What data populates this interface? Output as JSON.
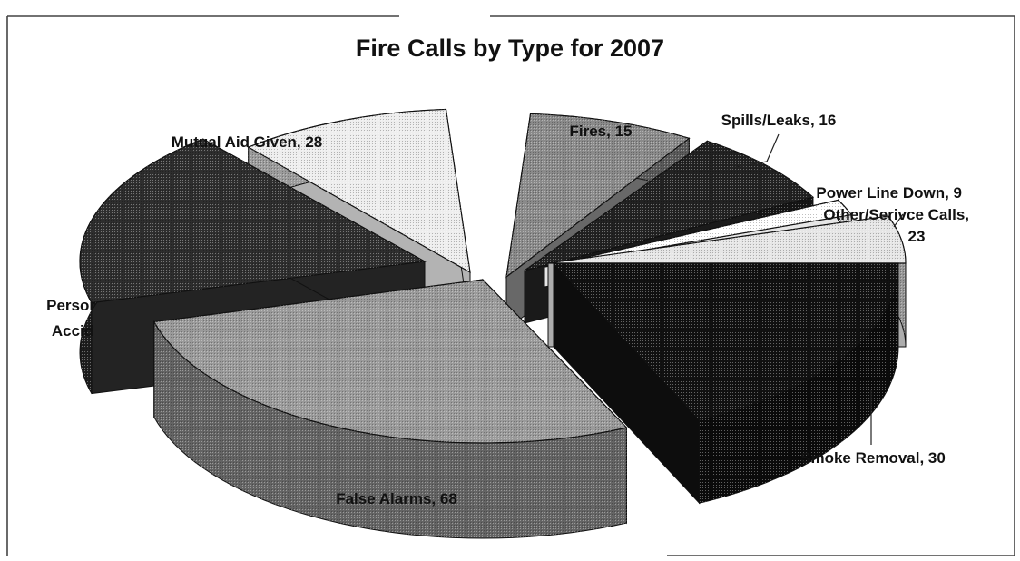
{
  "chart_data": {
    "type": "pie",
    "title": "Fire Calls by Type for 2007",
    "style": "3d-exploded",
    "slices": [
      {
        "label": "Fires",
        "value": 15,
        "display": "Fires, 15",
        "color": "#8a8a8a"
      },
      {
        "label": "Spills/Leaks",
        "value": 16,
        "display": "Spills/Leaks, 16",
        "color": "#222222"
      },
      {
        "label": "Power Line Down",
        "value": 9,
        "display": "Power Line Down, 9",
        "color": "#ffffff"
      },
      {
        "label": "Other/Serivce Calls",
        "value": 23,
        "display": "Other/Serivce Calls,",
        "display_line2": "23",
        "color": "#e6e6e6"
      },
      {
        "label": "Smoke Removal",
        "value": 30,
        "display": "Smoke Removal, 30",
        "color": "#111111"
      },
      {
        "label": "False Alarms",
        "value": 68,
        "display": "False Alarms, 68",
        "color": "#9a9a9a"
      },
      {
        "label": "Personal Accident",
        "value": null,
        "display": "Persor",
        "display_line2": "Accid",
        "color": "#2e2e2e"
      },
      {
        "label": "Mutual Aid Given",
        "value": 28,
        "display": "Mutual Aid Given, 28",
        "color": "#eeeeee"
      }
    ],
    "legend": "none",
    "grid": false
  }
}
